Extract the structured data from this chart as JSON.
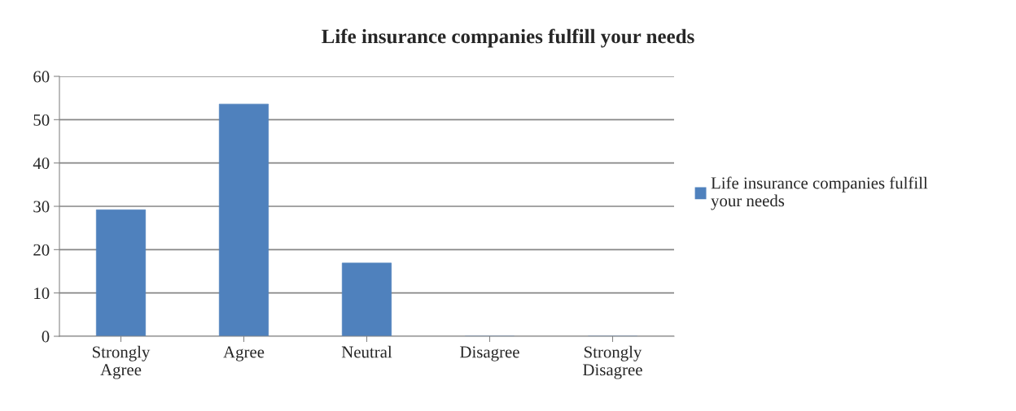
{
  "chart_data": {
    "type": "bar",
    "title": "Life insurance companies fulfill your needs",
    "categories": [
      "Strongly\nAgree",
      "Agree",
      "Neutral",
      "Disagree",
      "Strongly\nDisagree"
    ],
    "series": [
      {
        "name": "Life insurance companies fulfill\nyour needs",
        "color": "#4f81bd",
        "values": [
          29.2,
          53.6,
          16.9,
          0,
          0
        ]
      }
    ],
    "ylim": [
      0,
      60
    ],
    "yticks": [
      0,
      10,
      20,
      30,
      40,
      50,
      60
    ],
    "grid": "y",
    "legend": "right"
  }
}
